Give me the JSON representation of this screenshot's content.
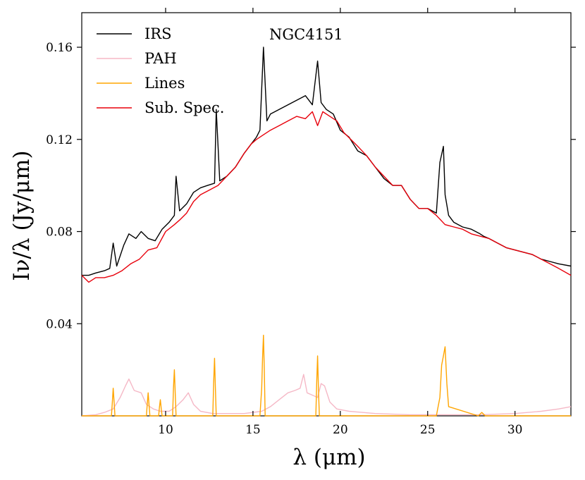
{
  "chart_data": {
    "type": "line",
    "title": "NGC4151",
    "xlabel": "λ (μm)",
    "ylabel": "Iν/λ (Jy/μm)",
    "xlim": [
      5.2,
      33.2
    ],
    "ylim": [
      0.0,
      0.175
    ],
    "xticks": [
      10,
      15,
      20,
      25,
      30
    ],
    "yticks": [
      0.04,
      0.08,
      0.12,
      0.16
    ],
    "xtick_labels": [
      "10",
      "15",
      "20",
      "25",
      "30"
    ],
    "ytick_labels": [
      "0.04",
      "0.08",
      "0.12",
      "0.16"
    ],
    "legend_position": "top-left",
    "series": [
      {
        "name": "IRS",
        "color": "#000000",
        "x": [
          5.2,
          5.6,
          6.0,
          6.5,
          6.8,
          7.0,
          7.2,
          7.6,
          7.9,
          8.3,
          8.6,
          9.0,
          9.4,
          9.8,
          10.2,
          10.5,
          10.6,
          10.8,
          11.2,
          11.6,
          12.0,
          12.4,
          12.8,
          12.9,
          13.1,
          13.5,
          14.0,
          14.5,
          14.9,
          15.2,
          15.4,
          15.6,
          15.8,
          16.0,
          16.5,
          17.0,
          17.5,
          18.0,
          18.4,
          18.7,
          18.9,
          19.2,
          19.6,
          20.0,
          20.5,
          21.0,
          21.5,
          22.0,
          22.5,
          23.0,
          23.5,
          24.0,
          24.5,
          25.0,
          25.5,
          25.7,
          25.9,
          26.0,
          26.2,
          26.5,
          27.0,
          27.5,
          28.0,
          28.2,
          28.5,
          29.0,
          29.5,
          30.0,
          30.5,
          31.0,
          31.5,
          32.0,
          32.5,
          33.2
        ],
        "y": [
          0.061,
          0.061,
          0.062,
          0.063,
          0.064,
          0.075,
          0.065,
          0.074,
          0.079,
          0.077,
          0.08,
          0.077,
          0.076,
          0.081,
          0.084,
          0.087,
          0.104,
          0.089,
          0.092,
          0.097,
          0.099,
          0.1,
          0.101,
          0.133,
          0.102,
          0.104,
          0.108,
          0.114,
          0.118,
          0.121,
          0.124,
          0.16,
          0.128,
          0.131,
          0.133,
          0.135,
          0.137,
          0.139,
          0.135,
          0.154,
          0.136,
          0.133,
          0.131,
          0.124,
          0.121,
          0.115,
          0.113,
          0.108,
          0.103,
          0.1,
          0.1,
          0.094,
          0.09,
          0.09,
          0.088,
          0.11,
          0.117,
          0.096,
          0.087,
          0.084,
          0.082,
          0.081,
          0.079,
          0.078,
          0.077,
          0.075,
          0.073,
          0.072,
          0.071,
          0.07,
          0.068,
          0.067,
          0.066,
          0.065
        ]
      },
      {
        "name": "PAH",
        "color": "#f5b8c6",
        "x": [
          5.2,
          6.0,
          6.5,
          7.0,
          7.4,
          7.7,
          7.9,
          8.2,
          8.6,
          8.9,
          9.3,
          9.7,
          10.2,
          10.6,
          11.0,
          11.3,
          11.6,
          12.0,
          12.7,
          13.5,
          14.5,
          15.5,
          16.0,
          16.5,
          17.0,
          17.4,
          17.7,
          17.9,
          18.1,
          18.4,
          18.7,
          18.9,
          19.1,
          19.4,
          19.8,
          20.5,
          22.0,
          24.0,
          26.0,
          28.0,
          30.0,
          31.5,
          32.5,
          33.2
        ],
        "y": [
          0.0,
          0.0005,
          0.0015,
          0.003,
          0.008,
          0.013,
          0.016,
          0.011,
          0.01,
          0.005,
          0.003,
          0.002,
          0.002,
          0.004,
          0.007,
          0.01,
          0.005,
          0.002,
          0.001,
          0.001,
          0.001,
          0.002,
          0.004,
          0.007,
          0.01,
          0.011,
          0.012,
          0.018,
          0.01,
          0.009,
          0.008,
          0.014,
          0.013,
          0.006,
          0.003,
          0.002,
          0.001,
          0.0005,
          0.0005,
          0.0005,
          0.001,
          0.002,
          0.003,
          0.004
        ]
      },
      {
        "name": "Lines",
        "color": "#ffa500",
        "x": [
          5.2,
          6.9,
          6.95,
          7.0,
          7.05,
          7.1,
          8.9,
          8.95,
          9.0,
          9.05,
          9.1,
          9.6,
          9.65,
          9.7,
          9.75,
          9.8,
          10.4,
          10.45,
          10.5,
          10.55,
          10.6,
          12.7,
          12.75,
          12.8,
          12.85,
          12.9,
          15.4,
          15.5,
          15.55,
          15.6,
          15.65,
          15.7,
          18.6,
          18.65,
          18.7,
          18.75,
          18.8,
          25.5,
          25.7,
          25.8,
          25.9,
          26.0,
          26.1,
          26.2,
          27.9,
          28.1,
          28.3,
          33.2
        ],
        "y": [
          0.0,
          0.0,
          0.006,
          0.012,
          0.006,
          0.0,
          0.0,
          0.005,
          0.01,
          0.005,
          0.0,
          0.0,
          0.004,
          0.007,
          0.003,
          0.0,
          0.0,
          0.012,
          0.02,
          0.01,
          0.0,
          0.0,
          0.014,
          0.025,
          0.012,
          0.0,
          0.0,
          0.012,
          0.025,
          0.035,
          0.02,
          0.0,
          0.0,
          0.015,
          0.026,
          0.012,
          0.0,
          0.0,
          0.008,
          0.022,
          0.026,
          0.03,
          0.014,
          0.004,
          0.0,
          0.0015,
          0.0,
          0.0
        ]
      },
      {
        "name": "Sub. Spec.",
        "color": "#e8000b",
        "x": [
          5.2,
          5.6,
          6.0,
          6.5,
          7.0,
          7.5,
          8.0,
          8.5,
          9.0,
          9.5,
          10.0,
          10.5,
          10.8,
          11.2,
          11.6,
          12.0,
          12.5,
          13.0,
          13.5,
          14.0,
          14.5,
          14.9,
          15.2,
          15.6,
          16.0,
          16.5,
          17.0,
          17.5,
          18.0,
          18.4,
          18.7,
          19.0,
          19.4,
          19.8,
          20.2,
          20.6,
          21.0,
          21.5,
          22.0,
          22.5,
          23.0,
          23.5,
          24.0,
          24.5,
          25.0,
          25.5,
          26.0,
          26.5,
          27.0,
          27.5,
          28.0,
          28.5,
          29.0,
          29.5,
          30.0,
          30.5,
          31.0,
          31.5,
          32.0,
          32.5,
          33.2
        ],
        "y": [
          0.061,
          0.058,
          0.06,
          0.06,
          0.061,
          0.063,
          0.066,
          0.068,
          0.072,
          0.073,
          0.08,
          0.083,
          0.085,
          0.088,
          0.093,
          0.096,
          0.098,
          0.1,
          0.104,
          0.108,
          0.114,
          0.118,
          0.12,
          0.122,
          0.124,
          0.126,
          0.128,
          0.13,
          0.129,
          0.132,
          0.126,
          0.132,
          0.13,
          0.128,
          0.123,
          0.12,
          0.117,
          0.113,
          0.108,
          0.104,
          0.1,
          0.1,
          0.094,
          0.09,
          0.09,
          0.087,
          0.083,
          0.082,
          0.081,
          0.079,
          0.078,
          0.077,
          0.075,
          0.073,
          0.072,
          0.071,
          0.07,
          0.068,
          0.066,
          0.064,
          0.061
        ]
      }
    ]
  }
}
